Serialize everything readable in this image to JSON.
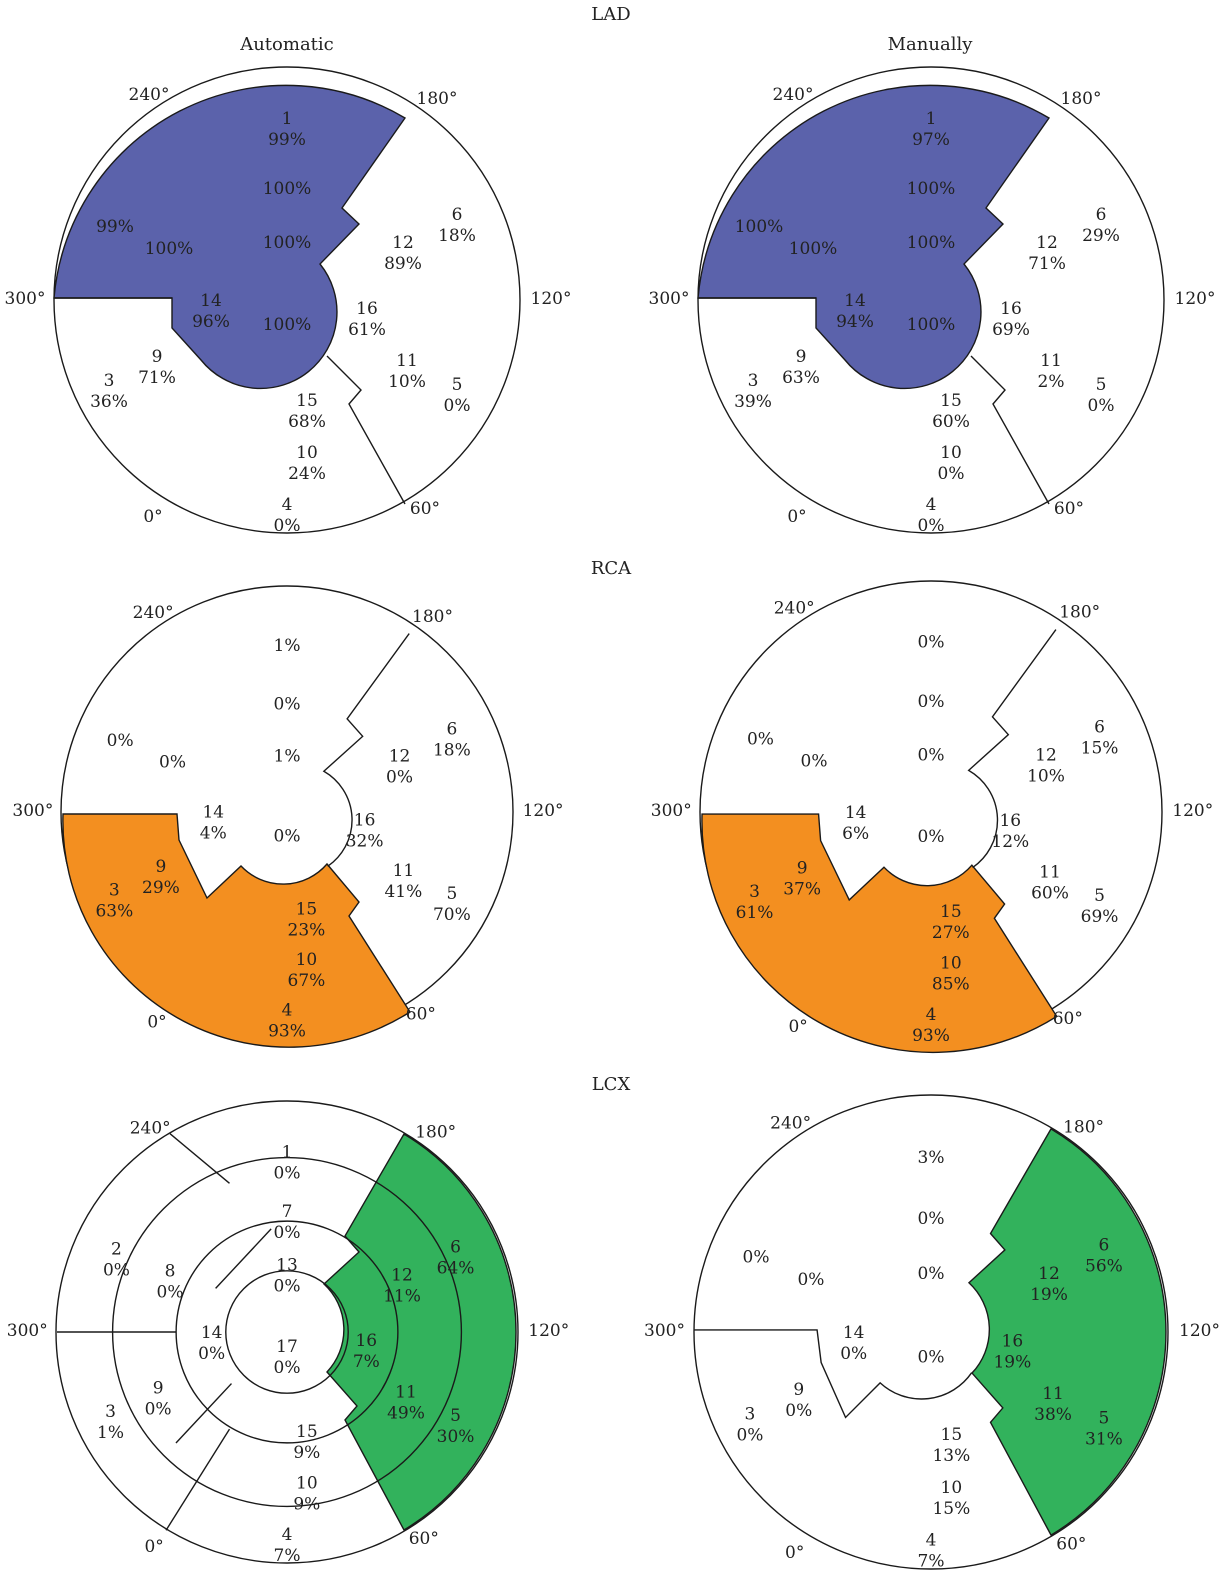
{
  "column_titles": [
    "Automatic",
    "Manually"
  ],
  "colors": {
    "LAD": "#5b62ab",
    "RCA": "#f38f20",
    "LCX": "#32b25c"
  },
  "angle_labels": [
    "240°",
    "180°",
    "300°",
    "120°",
    "0°",
    "60°"
  ],
  "panels": [
    {
      "id": "lad-auto",
      "group": "LAD",
      "method": "Automatic",
      "labels": [
        [
          "1",
          "99%"
        ],
        [
          "100%"
        ],
        [
          "100%"
        ],
        [
          "99%"
        ],
        [
          "100%"
        ],
        [
          "6",
          "18%"
        ],
        [
          "12",
          "89%"
        ],
        [
          "14",
          "96%"
        ],
        [
          "100%"
        ],
        [
          "16",
          "61%"
        ],
        [
          "9",
          "71%"
        ],
        [
          "3",
          "36%"
        ],
        [
          "11",
          "10%"
        ],
        [
          "5",
          "0%"
        ],
        [
          "15",
          "68%"
        ],
        [
          "10",
          "24%"
        ],
        [
          "4",
          "0%"
        ]
      ]
    },
    {
      "id": "lad-manual",
      "group": "LAD",
      "method": "Manually",
      "labels": [
        [
          "1",
          "97%"
        ],
        [
          "100%"
        ],
        [
          "100%"
        ],
        [
          "100%"
        ],
        [
          "100%"
        ],
        [
          "6",
          "29%"
        ],
        [
          "12",
          "71%"
        ],
        [
          "14",
          "94%"
        ],
        [
          "100%"
        ],
        [
          "16",
          "69%"
        ],
        [
          "9",
          "63%"
        ],
        [
          "3",
          "39%"
        ],
        [
          "11",
          "2%"
        ],
        [
          "5",
          "0%"
        ],
        [
          "15",
          "60%"
        ],
        [
          "10",
          "0%"
        ],
        [
          "4",
          "0%"
        ]
      ]
    },
    {
      "id": "rca-auto",
      "group": "RCA",
      "method": "Automatic",
      "labels": [
        [
          "1%"
        ],
        [
          "0%"
        ],
        [
          "1%"
        ],
        [
          "0%"
        ],
        [
          "0%"
        ],
        [
          "6",
          "18%"
        ],
        [
          "12",
          "0%"
        ],
        [
          "14",
          "4%"
        ],
        [
          "0%"
        ],
        [
          "16",
          "32%"
        ],
        [
          "9",
          "29%"
        ],
        [
          "3",
          "63%"
        ],
        [
          "11",
          "41%"
        ],
        [
          "5",
          "70%"
        ],
        [
          "15",
          "23%"
        ],
        [
          "10",
          "67%"
        ],
        [
          "4",
          "93%"
        ]
      ]
    },
    {
      "id": "rca-manual",
      "group": "RCA",
      "method": "Manually",
      "labels": [
        [
          "0%"
        ],
        [
          "0%"
        ],
        [
          "0%"
        ],
        [
          "0%"
        ],
        [
          "0%"
        ],
        [
          "6",
          "15%"
        ],
        [
          "12",
          "10%"
        ],
        [
          "14",
          "6%"
        ],
        [
          "0%"
        ],
        [
          "16",
          "12%"
        ],
        [
          "9",
          "37%"
        ],
        [
          "3",
          "61%"
        ],
        [
          "11",
          "60%"
        ],
        [
          "5",
          "69%"
        ],
        [
          "15",
          "27%"
        ],
        [
          "10",
          "85%"
        ],
        [
          "4",
          "93%"
        ]
      ]
    },
    {
      "id": "lcx-auto",
      "group": "LCX",
      "method": "Automatic",
      "labels": [
        [
          "1",
          "0%"
        ],
        [
          "7",
          "0%"
        ],
        [
          "13",
          "0%"
        ],
        [
          "2",
          "0%"
        ],
        [
          "8",
          "0%"
        ],
        [
          "6",
          "64%"
        ],
        [
          "12",
          "11%"
        ],
        [
          "14",
          "0%"
        ],
        [
          "17",
          "0%"
        ],
        [
          "16",
          "7%"
        ],
        [
          "9",
          "0%"
        ],
        [
          "3",
          "1%"
        ],
        [
          "11",
          "49%"
        ],
        [
          "5",
          "30%"
        ],
        [
          "15",
          "9%"
        ],
        [
          "10",
          "9%"
        ],
        [
          "4",
          "7%"
        ]
      ]
    },
    {
      "id": "lcx-manual",
      "group": "LCX",
      "method": "Manually",
      "labels": [
        [
          "3%"
        ],
        [
          "0%"
        ],
        [
          "0%"
        ],
        [
          "0%"
        ],
        [
          "0%"
        ],
        [
          "6",
          "56%"
        ],
        [
          "12",
          "19%"
        ],
        [
          "14",
          "0%"
        ],
        [
          "0%"
        ],
        [
          "16",
          "19%"
        ],
        [
          "9",
          "0%"
        ],
        [
          "3",
          "0%"
        ],
        [
          "11",
          "38%"
        ],
        [
          "5",
          "31%"
        ],
        [
          "15",
          "13%"
        ],
        [
          "10",
          "15%"
        ],
        [
          "4",
          "7%"
        ]
      ]
    }
  ]
}
